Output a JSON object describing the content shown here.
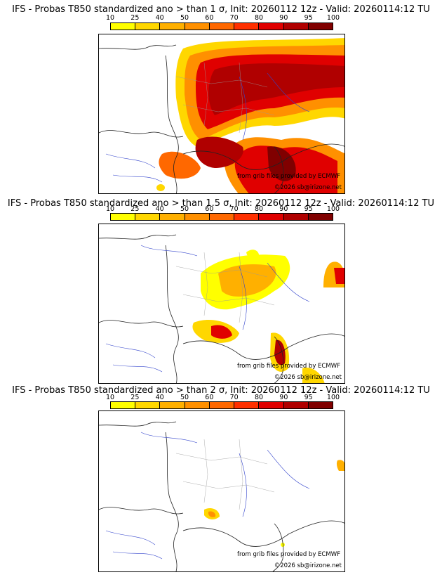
{
  "colorbar": {
    "ticks": [
      "10",
      "25",
      "40",
      "50",
      "60",
      "70",
      "80",
      "90",
      "95",
      "100"
    ],
    "colors": [
      "#ffff00",
      "#ffd700",
      "#ffb000",
      "#ff9000",
      "#ff6800",
      "#ff3000",
      "#e00000",
      "#b00000",
      "#800000"
    ]
  },
  "panels": [
    {
      "title": "IFS - Probas T850  standardized ano > than 1 σ, Init: 20260112 12z - Valid: 20260114:12 TU"
    },
    {
      "title": "IFS - Probas T850  standardized ano > than 1.5 σ, Init: 20260112 12z - Valid: 20260114:12 TU"
    },
    {
      "title": "IFS - Probas T850  standardized ano > than 2 σ, Init: 20260112 12z - Valid: 20260114:12 TU"
    }
  ],
  "credits": {
    "source": "from grib files provided by ECMWF",
    "copyright": "©2026 sb@irizone.net"
  }
}
